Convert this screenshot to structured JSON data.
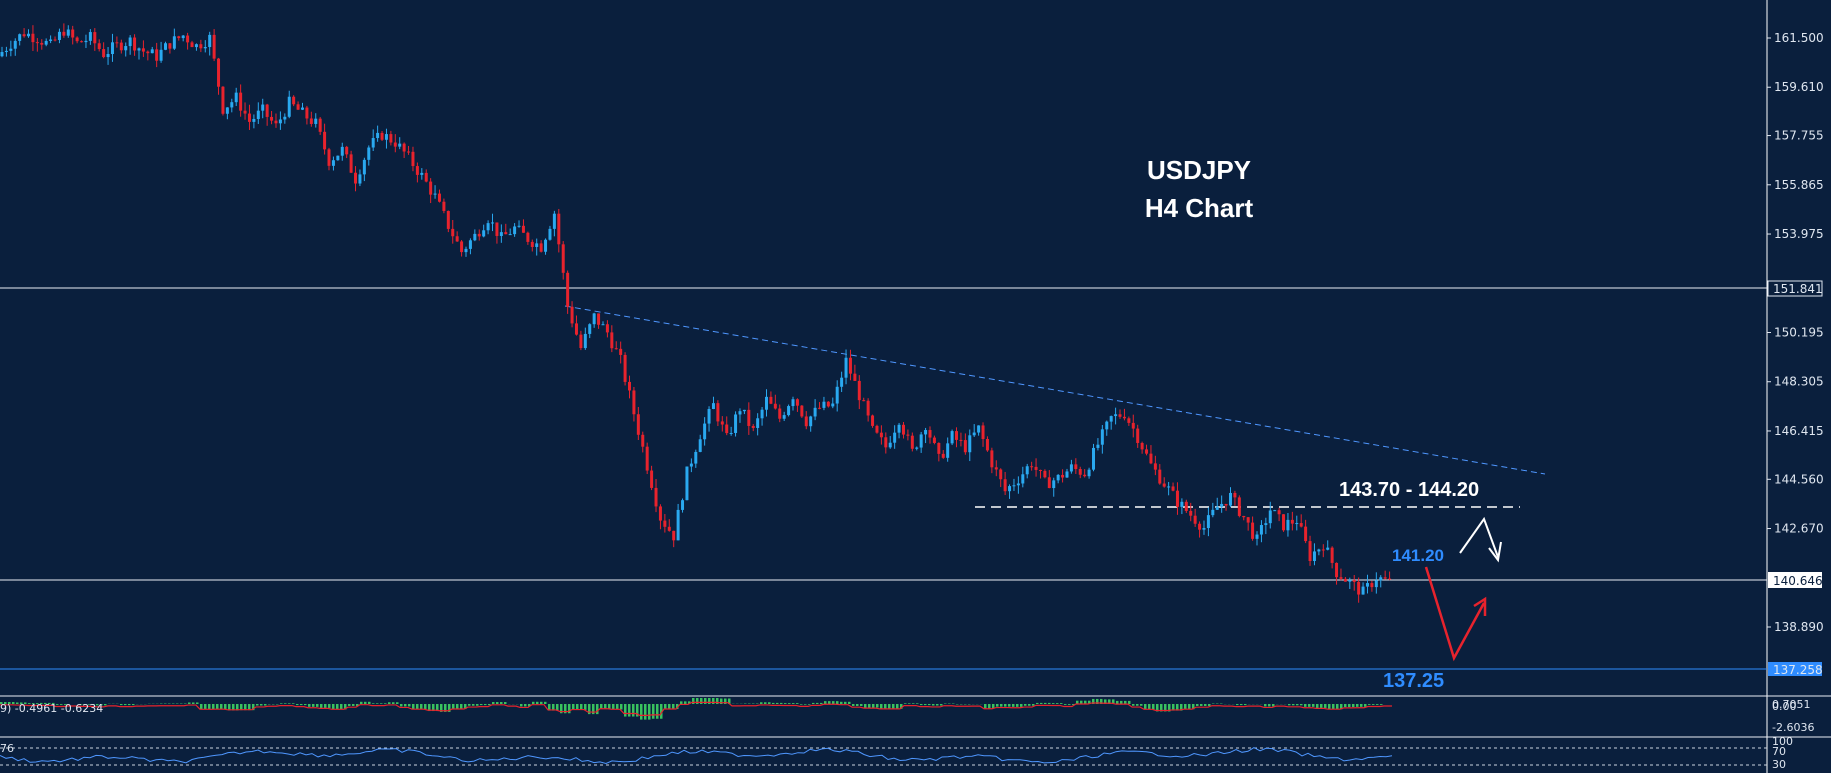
{
  "chart_data": {
    "type": "candlestick",
    "symbol": "USDJPY",
    "timeframe": "H4 Chart",
    "title": "USDJPY",
    "subtitle": "H4 Chart",
    "ylim": [
      136.7,
      162.4
    ],
    "y_ticks": [
      "161.500",
      "159.610",
      "157.755",
      "155.865",
      "153.975",
      "150.195",
      "148.305",
      "146.415",
      "144.560",
      "142.670",
      "138.890"
    ],
    "price_labels": {
      "upper_line": "151.841",
      "current_price": "140.646",
      "lower_line": "137.258"
    },
    "annotations": {
      "resistance_zone": "143.70 - 144.20",
      "pivot": "141.20",
      "target": "137.25"
    },
    "key_levels": {
      "upper_horizontal": 151.841,
      "current_price": 140.646,
      "lower_horizontal": 137.258,
      "resistance_low": 143.7,
      "resistance_high": 144.2,
      "pivot": 141.2,
      "target": 137.25
    },
    "trendline": {
      "start_price": 151.0,
      "end_price": 144.8
    },
    "price_path": [
      160.8,
      161.3,
      161.7,
      161.5,
      161.2,
      161.8,
      161.3,
      161.5,
      160.9,
      161.2,
      161.4,
      161.0,
      160.8,
      161.3,
      161.6,
      161.2,
      161.5,
      158.8,
      159.2,
      158.3,
      158.7,
      158.1,
      159.0,
      158.6,
      158.2,
      156.8,
      157.2,
      156.1,
      157.3,
      157.8,
      157.5,
      156.9,
      156.2,
      155.4,
      154.3,
      153.3,
      153.9,
      154.6,
      153.8,
      154.2,
      153.8,
      153.5,
      154.8,
      151.2,
      149.6,
      150.8,
      150.2,
      149.1,
      147.1,
      145.1,
      143.1,
      142.4,
      144.8,
      146.3,
      147.4,
      146.1,
      147.3,
      146.4,
      147.6,
      146.9,
      147.8,
      146.8,
      147.3,
      147.4,
      149.1,
      147.8,
      146.4,
      145.8,
      146.9,
      145.6,
      146.7,
      145.3,
      146.2,
      145.8,
      146.5,
      145.2,
      144.1,
      144.6,
      145.2,
      144.4,
      144.6,
      145.0,
      144.8,
      145.9,
      146.9,
      147.1,
      146.2,
      145.1,
      144.4,
      143.7,
      143.2,
      142.7,
      143.5,
      143.9,
      143.1,
      142.2,
      143.4,
      142.8,
      143.0,
      141.6,
      142.1,
      141.0,
      140.6,
      140.2,
      140.8,
      140.6
    ],
    "indicator_labels": {
      "macd": "9) -0.4961 -0.6234",
      "macd_axis": [
        "0.7051",
        "0.00",
        "-2.6036"
      ],
      "rsi_left": "76",
      "rsi_axis": [
        "100",
        "70",
        "30"
      ]
    },
    "colors": {
      "background": "#0a1f3d",
      "bull": "#2aa9f0",
      "bear": "#e8232d",
      "text_white": "#ffffff",
      "annotation_blue": "#2f8cff",
      "grid_line": "#dfe6f0",
      "macd_hist": "#39c25f",
      "macd_signal": "#e8232d"
    }
  }
}
